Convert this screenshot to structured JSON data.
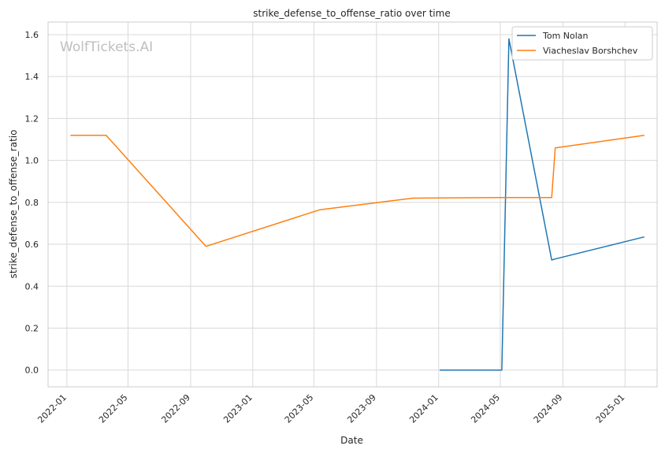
{
  "chart_data": {
    "type": "line",
    "title": "strike_defense_to_offense_ratio over time",
    "xlabel": "Date",
    "ylabel": "strike_defense_to_offense_ratio",
    "watermark": "WolfTickets.AI",
    "xlim": [
      "2021-11-25",
      "2025-03-05"
    ],
    "ylim": [
      -0.08,
      1.66
    ],
    "grid": true,
    "legend_position": "top-right",
    "x_ticks": [
      "2022-01",
      "2022-05",
      "2022-09",
      "2023-01",
      "2023-05",
      "2023-09",
      "2024-01",
      "2024-05",
      "2024-09",
      "2025-01"
    ],
    "y_ticks": [
      0.0,
      0.2,
      0.4,
      0.6,
      0.8,
      1.0,
      1.2,
      1.4,
      1.6
    ],
    "y_tick_labels": [
      "0.0",
      "0.2",
      "0.4",
      "0.6",
      "0.8",
      "1.0",
      "1.2",
      "1.4",
      "1.6"
    ],
    "series": [
      {
        "name": "Tom Nolan",
        "color": "#1f77b4",
        "x": [
          "2024-01-03",
          "2024-05-04",
          "2024-05-18",
          "2024-08-10",
          "2024-08-17",
          "2025-02-08"
        ],
        "y": [
          0.0,
          0.0,
          1.58,
          0.525,
          0.53,
          0.635
        ]
      },
      {
        "name": "Viacheslav Borshchev",
        "color": "#ff7f0e",
        "x": [
          "2022-01-08",
          "2022-03-19",
          "2022-10-01",
          "2023-05-13",
          "2023-11-11",
          "2024-05-11",
          "2024-08-10",
          "2024-08-17",
          "2025-02-08"
        ],
        "y": [
          1.12,
          1.12,
          0.59,
          0.765,
          0.82,
          0.823,
          0.823,
          1.06,
          1.12
        ]
      }
    ]
  }
}
